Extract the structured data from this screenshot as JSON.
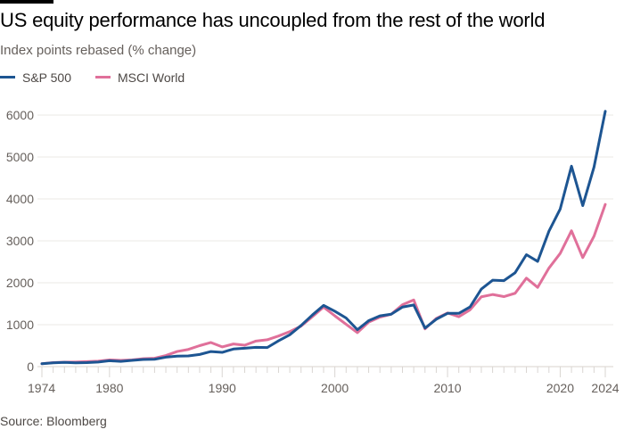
{
  "header": {
    "title": "US equity performance has uncoupled from the rest of the world",
    "subtitle": "Index points rebased (% change)"
  },
  "legend": [
    {
      "label": "S&P 500",
      "color": "#1d5592"
    },
    {
      "label": "MSCI World",
      "color": "#e0709a"
    }
  ],
  "footer": {
    "source": "Source: Bloomberg"
  },
  "chart_data": {
    "type": "line",
    "title": "US equity performance has uncoupled from the rest of the world",
    "subtitle": "Index points rebased (% change)",
    "xlabel": "",
    "ylabel": "",
    "xlim": [
      1974,
      2024
    ],
    "ylim": [
      0,
      6000
    ],
    "x_ticks": [
      1974,
      1980,
      1990,
      2000,
      2010,
      2020,
      2024
    ],
    "x_tick_labels": [
      "1974",
      "1980",
      "1990",
      "2000",
      "2010",
      "2020",
      "2024"
    ],
    "y_ticks": [
      0,
      1000,
      2000,
      3000,
      4000,
      5000,
      6000
    ],
    "y_tick_labels": [
      "0",
      "1000",
      "2000",
      "3000",
      "4000",
      "5000",
      "6000"
    ],
    "grid": "horizontal",
    "legend_position": "top-left",
    "x": [
      1974,
      1975,
      1976,
      1977,
      1978,
      1979,
      1980,
      1981,
      1982,
      1983,
      1984,
      1985,
      1986,
      1987,
      1988,
      1989,
      1990,
      1991,
      1992,
      1993,
      1994,
      1995,
      1996,
      1997,
      1998,
      1999,
      2000,
      2001,
      2002,
      2003,
      2004,
      2005,
      2006,
      2007,
      2008,
      2009,
      2010,
      2011,
      2012,
      2013,
      2014,
      2015,
      2016,
      2017,
      2018,
      2019,
      2020,
      2021,
      2022,
      2023,
      2024
    ],
    "series": [
      {
        "name": "S&P 500",
        "color": "#1d5592",
        "values": [
          70,
          90,
          100,
          90,
          95,
          110,
          140,
          125,
          150,
          170,
          175,
          225,
          250,
          255,
          290,
          360,
          340,
          420,
          440,
          460,
          455,
          615,
          760,
          980,
          1230,
          1460,
          1320,
          1160,
          880,
          1095,
          1210,
          1250,
          1420,
          1470,
          920,
          1130,
          1270,
          1270,
          1425,
          1850,
          2060,
          2050,
          2240,
          2670,
          2510,
          3230,
          3760,
          4780,
          3840,
          4760,
          6090
        ]
      },
      {
        "name": "MSCI World",
        "color": "#e0709a",
        "values": [
          70,
          95,
          105,
          110,
          120,
          130,
          160,
          150,
          160,
          190,
          200,
          265,
          360,
          410,
          500,
          575,
          470,
          540,
          510,
          610,
          640,
          730,
          835,
          965,
          1190,
          1420,
          1210,
          1010,
          810,
          1060,
          1180,
          1250,
          1475,
          1590,
          900,
          1150,
          1280,
          1190,
          1355,
          1665,
          1720,
          1670,
          1750,
          2110,
          1890,
          2350,
          2700,
          3240,
          2600,
          3110,
          3870
        ]
      }
    ]
  }
}
